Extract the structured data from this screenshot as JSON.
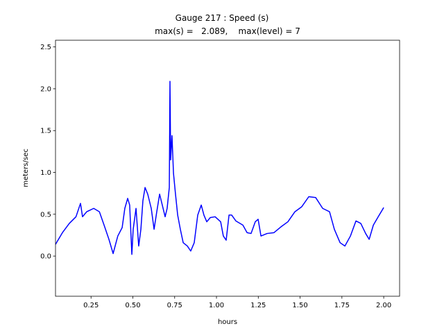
{
  "chart_data": {
    "type": "line",
    "title": "Gauge 217 : Speed (s)",
    "subtitle": "max(s) =   2.089,    max(level) = 7",
    "x_label": "hours",
    "y_label": "meters/sec",
    "xlim": [
      0.0375,
      2.095
    ],
    "ylim": [
      -0.48,
      2.58
    ],
    "xticks": [
      {
        "value": 0.25,
        "label": "0.25"
      },
      {
        "value": 0.5,
        "label": "0.50"
      },
      {
        "value": 0.75,
        "label": "0.75"
      },
      {
        "value": 1,
        "label": "1.00"
      },
      {
        "value": 1.25,
        "label": "1.25"
      },
      {
        "value": 1.5,
        "label": "1.50"
      },
      {
        "value": 1.75,
        "label": "1.75"
      },
      {
        "value": 2,
        "label": "2.00"
      }
    ],
    "yticks": [
      {
        "value": 0,
        "label": "0.0"
      },
      0.5,
      {
        "value": 1,
        "label": "1.0"
      },
      1.5,
      {
        "value": 2,
        "label": "2.0"
      },
      2.5
    ],
    "grid": false,
    "x": [
      0.0375,
      0.079,
      0.12,
      0.16,
      0.187,
      0.199,
      0.224,
      0.266,
      0.3,
      0.328,
      0.357,
      0.382,
      0.41,
      0.436,
      0.452,
      0.469,
      0.481,
      0.494,
      0.502,
      0.519,
      0.535,
      0.548,
      0.56,
      0.573,
      0.589,
      0.61,
      0.627,
      0.643,
      0.66,
      0.676,
      0.693,
      0.705,
      0.718,
      0.722,
      0.726,
      0.734,
      0.743,
      0.755,
      0.768,
      0.784,
      0.801,
      0.826,
      0.846,
      0.867,
      0.888,
      0.909,
      0.925,
      0.942,
      0.963,
      0.992,
      1.025,
      1.041,
      1.058,
      1.075,
      1.091,
      1.116,
      1.158,
      1.183,
      1.207,
      1.232,
      1.249,
      1.266,
      1.303,
      1.344,
      1.386,
      1.427,
      1.469,
      1.51,
      1.552,
      1.593,
      1.635,
      1.676,
      1.705,
      1.739,
      1.768,
      1.801,
      1.834,
      1.863,
      1.892,
      1.913,
      1.938,
      1.967,
      2.0
    ],
    "series": [
      {
        "name": "speed",
        "color": "#0000ff",
        "values": [
          0.14,
          0.28,
          0.39,
          0.47,
          0.63,
          0.47,
          0.53,
          0.57,
          0.53,
          0.37,
          0.2,
          0.03,
          0.24,
          0.34,
          0.57,
          0.69,
          0.61,
          0.02,
          0.32,
          0.57,
          0.12,
          0.32,
          0.66,
          0.82,
          0.74,
          0.57,
          0.32,
          0.53,
          0.74,
          0.61,
          0.47,
          0.57,
          0.82,
          2.089,
          1.15,
          1.44,
          0.99,
          0.74,
          0.49,
          0.32,
          0.16,
          0.12,
          0.06,
          0.16,
          0.49,
          0.61,
          0.49,
          0.41,
          0.46,
          0.47,
          0.41,
          0.24,
          0.19,
          0.49,
          0.49,
          0.42,
          0.37,
          0.28,
          0.27,
          0.41,
          0.44,
          0.24,
          0.27,
          0.28,
          0.35,
          0.41,
          0.53,
          0.59,
          0.71,
          0.7,
          0.57,
          0.53,
          0.32,
          0.16,
          0.12,
          0.24,
          0.42,
          0.39,
          0.27,
          0.2,
          0.37,
          0.47,
          0.58
        ]
      }
    ]
  }
}
